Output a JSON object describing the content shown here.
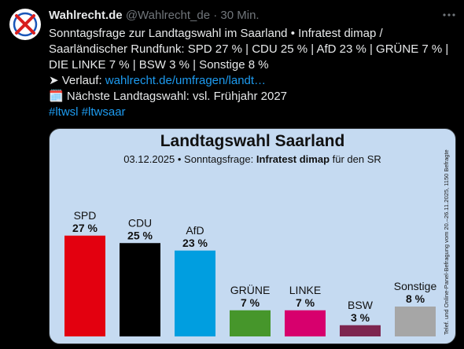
{
  "tweet": {
    "author_name": "Wahlrecht.de",
    "handle": "@Wahlrecht_de",
    "separator": "·",
    "time": "30 Min.",
    "avatar_icon": "crossed-ballot-icon",
    "lines": {
      "l1": "Sonntagsfrage zur Landtagswahl im Saarland • Infratest dimap /",
      "l2": "Saarländischer Rundfunk: SPD 27 % | CDU 25 % | AfD 23 % | GRÜNE 7 % |",
      "l3": "DIE LINKE 7 % | BSW 3 % | Sonstige 8 %",
      "verlauf_arrow": "➤",
      "verlauf_label": " Verlauf: ",
      "verlauf_link": "wahlrecht.de/umfragen/landt…",
      "calendar_icon": "🗓️",
      "next_election": " Nächste Landtagswahl: vsl. Frühjahr 2027",
      "hashtags": "#ltwsl #ltwsaar"
    }
  },
  "card": {
    "title": "Landtagswahl Saarland",
    "subtitle_date": "03.12.2025 • Sonntagsfrage: ",
    "subtitle_institute": "Infratest dimap",
    "subtitle_suffix": " für den SR",
    "side_note": "Telef. und Online-Panel-Befragung vom 20.–26.11.2025, 1150 Befragte"
  },
  "chart_data": {
    "type": "bar",
    "title": "Landtagswahl Saarland",
    "categories": [
      "SPD",
      "CDU",
      "AfD",
      "GRÜNE",
      "LINKE",
      "BSW",
      "Sonstige"
    ],
    "values": [
      27,
      25,
      23,
      7,
      7,
      3,
      8
    ],
    "value_labels": [
      "27 %",
      "25 %",
      "23 %",
      "7 %",
      "7 %",
      "3 %",
      "8 %"
    ],
    "colors": [
      "#e3000f",
      "#000000",
      "#009ee0",
      "#46962b",
      "#d7006d",
      "#7d254f",
      "#a6a6a6"
    ],
    "grid": false,
    "legend": "none"
  }
}
